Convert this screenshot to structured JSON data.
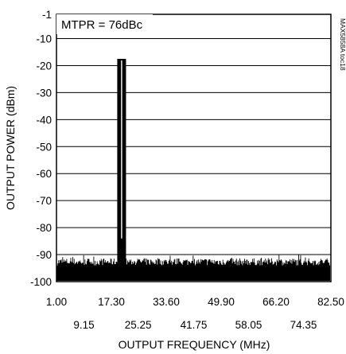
{
  "chart_data": {
    "type": "line",
    "annotation": "MTPR = 76dBc",
    "figure_code": "MAX5858A toc18",
    "xlabel": "OUTPUT FREQUENCY (MHz)",
    "ylabel": "OUTPUT POWER (dBm)",
    "xlim": [
      1.0,
      82.5
    ],
    "ylim": [
      -100,
      -1
    ],
    "x_ticks": [
      1.0,
      9.15,
      17.3,
      25.25,
      33.6,
      41.75,
      49.9,
      58.05,
      66.2,
      74.35,
      82.5
    ],
    "x_tick_labels": [
      "1.00",
      "9.15",
      "17.30",
      "25.25",
      "33.60",
      "41.75",
      "49.90",
      "58.05",
      "66.20",
      "74.35",
      "82.50"
    ],
    "y_ticks": [
      -1,
      -10,
      -20,
      -30,
      -40,
      -50,
      -60,
      -70,
      -80,
      -90,
      -100
    ],
    "y_tick_labels": [
      "-1",
      "-10",
      "-20",
      "-30",
      "-40",
      "-50",
      "-60",
      "-70",
      "-80",
      "-90",
      "-100"
    ],
    "grid": true,
    "series": [
      {
        "noise_floor_dbm": -94,
        "tones": [
          {
            "x": 19.45,
            "y": -17.5
          },
          {
            "x": 20.05,
            "y": -17.5
          },
          {
            "x": 20.65,
            "y": -17.5
          },
          {
            "x": 21.25,
            "y": -17.5
          }
        ],
        "tone_notch": {
          "x": 20.35,
          "y": -84
        }
      }
    ]
  }
}
